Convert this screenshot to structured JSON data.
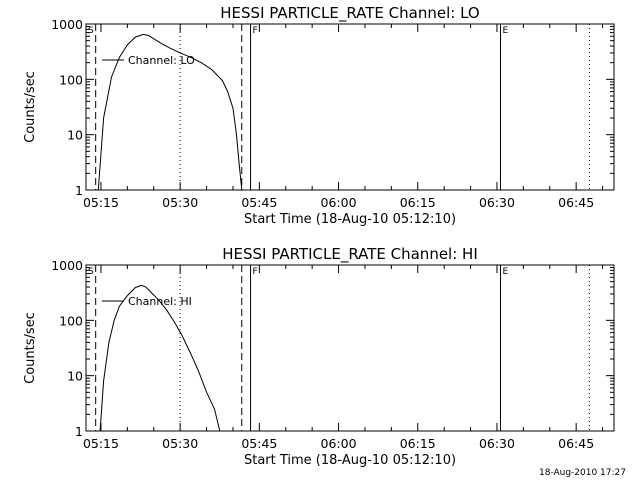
{
  "footer_stamp": "18-Aug-2010 17:27",
  "chart_data": [
    {
      "type": "line",
      "title": "HESSI PARTICLE_RATE Channel: LO",
      "xlabel": "Start Time (18-Aug-10 05:12:10)",
      "ylabel": "Counts/sec",
      "y_scale": "log",
      "ylim": [
        1,
        1000
      ],
      "y_ticks": [
        "1",
        "10",
        "100",
        "1000"
      ],
      "xlim": [
        "05:12:10",
        "06:52:10"
      ],
      "x_ticks": [
        "05:15",
        "05:30",
        "05:45",
        "06:00",
        "06:15",
        "06:30",
        "06:45"
      ],
      "legend": "Channel: LO",
      "markers": [
        {
          "label": "S",
          "time": "05:12:10",
          "style": "dotted"
        },
        {
          "label": "",
          "time": "05:14:00",
          "style": "dashed"
        },
        {
          "label": "",
          "time": "05:30:00",
          "style": "dotted"
        },
        {
          "label": "",
          "time": "05:41:40",
          "style": "dashed"
        },
        {
          "label": "F",
          "time": "05:43:20",
          "style": "solid"
        },
        {
          "label": "E",
          "time": "06:30:40",
          "style": "solid"
        },
        {
          "label": "",
          "time": "06:47:30",
          "style": "dotted"
        }
      ],
      "series": [
        {
          "name": "Channel: LO",
          "x": [
            "05:14:30",
            "05:15:30",
            "05:17:00",
            "05:18:30",
            "05:20:00",
            "05:21:30",
            "05:23:00",
            "05:24:00",
            "05:25:00",
            "05:26:30",
            "05:28:00",
            "05:30:00",
            "05:32:00",
            "05:34:00",
            "05:36:00",
            "05:38:00",
            "05:39:00",
            "05:40:00",
            "05:40:40",
            "05:41:10",
            "05:41:40"
          ],
          "values": [
            1,
            20,
            110,
            250,
            420,
            580,
            650,
            620,
            540,
            440,
            370,
            300,
            250,
            200,
            150,
            95,
            60,
            30,
            10,
            3,
            1
          ]
        }
      ]
    },
    {
      "type": "line",
      "title": "HESSI PARTICLE_RATE Channel: HI",
      "xlabel": "Start Time (18-Aug-10 05:12:10)",
      "ylabel": "Counts/sec",
      "y_scale": "log",
      "ylim": [
        1,
        1000
      ],
      "y_ticks": [
        "1",
        "10",
        "100",
        "1000"
      ],
      "xlim": [
        "05:12:10",
        "06:52:10"
      ],
      "x_ticks": [
        "05:15",
        "05:30",
        "05:45",
        "06:00",
        "06:15",
        "06:30",
        "06:45"
      ],
      "legend": "Channel: HI",
      "markers": [
        {
          "label": "S",
          "time": "05:12:10",
          "style": "dotted"
        },
        {
          "label": "",
          "time": "05:14:00",
          "style": "dashed"
        },
        {
          "label": "",
          "time": "05:30:00",
          "style": "dotted"
        },
        {
          "label": "",
          "time": "05:41:40",
          "style": "dashed"
        },
        {
          "label": "F",
          "time": "05:43:20",
          "style": "solid"
        },
        {
          "label": "E",
          "time": "06:30:40",
          "style": "solid"
        },
        {
          "label": "",
          "time": "06:47:30",
          "style": "dotted"
        }
      ],
      "series": [
        {
          "name": "Channel: HI",
          "x": [
            "05:14:50",
            "05:15:30",
            "05:16:30",
            "05:17:30",
            "05:18:30",
            "05:20:00",
            "05:21:30",
            "05:22:40",
            "05:23:30",
            "05:24:30",
            "05:26:00",
            "05:27:30",
            "05:29:00",
            "05:30:30",
            "05:32:00",
            "05:33:30",
            "05:35:00",
            "05:36:30",
            "05:37:30"
          ],
          "values": [
            1,
            8,
            40,
            100,
            180,
            280,
            390,
            430,
            400,
            320,
            230,
            150,
            90,
            50,
            25,
            12,
            5,
            2.5,
            1
          ]
        }
      ]
    }
  ]
}
